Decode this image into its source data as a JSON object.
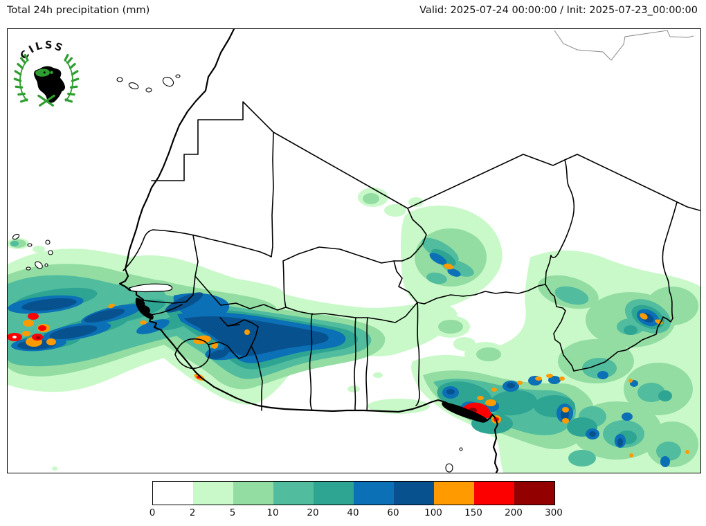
{
  "header": {
    "title": "Total 24h precipitation (mm)",
    "valid_init": "Valid: 2025-07-24 00:00:00 / Init: 2025-07-23_00:00:00"
  },
  "logo": {
    "text": "CILSS"
  },
  "colorbar": {
    "ticks": [
      "0",
      "2",
      "5",
      "10",
      "20",
      "40",
      "60",
      "100",
      "150",
      "200",
      "300"
    ],
    "segment_colors": [
      "#ffffff",
      "#c9f9c9",
      "#93dda2",
      "#51bc9e",
      "#2ea593",
      "#0b70b5",
      "#07518f",
      "#ff9b00",
      "#fc0000",
      "#930000"
    ]
  },
  "chart_data": {
    "type": "heatmap",
    "title": "Total 24h precipitation (mm)",
    "valid": "2025-07-24 00:00:00",
    "init": "2025-07-23_00:00:00",
    "units": "mm",
    "scale_ticks": [
      0,
      2,
      5,
      10,
      20,
      40,
      60,
      100,
      150,
      200,
      300
    ],
    "scale_colors": [
      "#ffffff",
      "#c9f9c9",
      "#93dda2",
      "#51bc9e",
      "#2ea593",
      "#0b70b5",
      "#07518f",
      "#ff9b00",
      "#fc0000",
      "#930000"
    ],
    "legend_position": "bottom"
  }
}
